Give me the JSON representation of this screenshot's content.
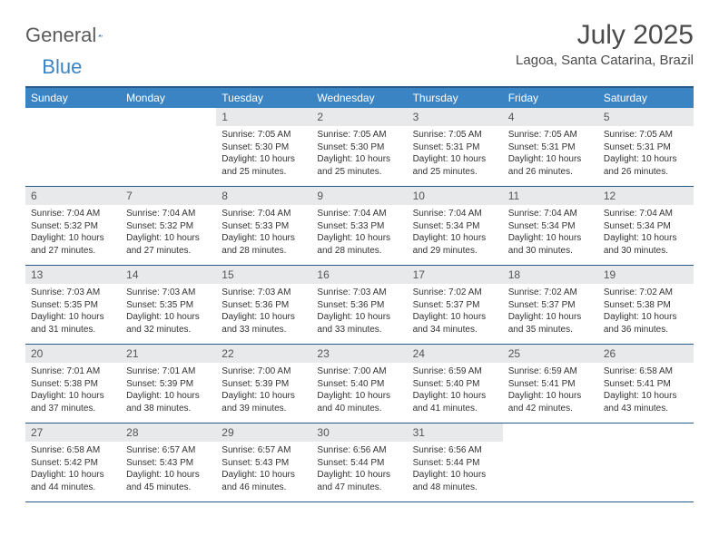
{
  "logo": {
    "text1": "General",
    "text2": "Blue"
  },
  "title": "July 2025",
  "location": "Lagoa, Santa Catarina, Brazil",
  "colors": {
    "header_bg": "#3b84c4",
    "row_border": "#2a5a8a",
    "daynum_bg": "#e8e9ea",
    "text": "#4a4a4a"
  },
  "weekdays": [
    "Sunday",
    "Monday",
    "Tuesday",
    "Wednesday",
    "Thursday",
    "Friday",
    "Saturday"
  ],
  "weeks": [
    [
      {
        "n": "",
        "sr": "",
        "ss": "",
        "dl": ""
      },
      {
        "n": "",
        "sr": "",
        "ss": "",
        "dl": ""
      },
      {
        "n": "1",
        "sr": "Sunrise: 7:05 AM",
        "ss": "Sunset: 5:30 PM",
        "dl": "Daylight: 10 hours and 25 minutes."
      },
      {
        "n": "2",
        "sr": "Sunrise: 7:05 AM",
        "ss": "Sunset: 5:30 PM",
        "dl": "Daylight: 10 hours and 25 minutes."
      },
      {
        "n": "3",
        "sr": "Sunrise: 7:05 AM",
        "ss": "Sunset: 5:31 PM",
        "dl": "Daylight: 10 hours and 25 minutes."
      },
      {
        "n": "4",
        "sr": "Sunrise: 7:05 AM",
        "ss": "Sunset: 5:31 PM",
        "dl": "Daylight: 10 hours and 26 minutes."
      },
      {
        "n": "5",
        "sr": "Sunrise: 7:05 AM",
        "ss": "Sunset: 5:31 PM",
        "dl": "Daylight: 10 hours and 26 minutes."
      }
    ],
    [
      {
        "n": "6",
        "sr": "Sunrise: 7:04 AM",
        "ss": "Sunset: 5:32 PM",
        "dl": "Daylight: 10 hours and 27 minutes."
      },
      {
        "n": "7",
        "sr": "Sunrise: 7:04 AM",
        "ss": "Sunset: 5:32 PM",
        "dl": "Daylight: 10 hours and 27 minutes."
      },
      {
        "n": "8",
        "sr": "Sunrise: 7:04 AM",
        "ss": "Sunset: 5:33 PM",
        "dl": "Daylight: 10 hours and 28 minutes."
      },
      {
        "n": "9",
        "sr": "Sunrise: 7:04 AM",
        "ss": "Sunset: 5:33 PM",
        "dl": "Daylight: 10 hours and 28 minutes."
      },
      {
        "n": "10",
        "sr": "Sunrise: 7:04 AM",
        "ss": "Sunset: 5:34 PM",
        "dl": "Daylight: 10 hours and 29 minutes."
      },
      {
        "n": "11",
        "sr": "Sunrise: 7:04 AM",
        "ss": "Sunset: 5:34 PM",
        "dl": "Daylight: 10 hours and 30 minutes."
      },
      {
        "n": "12",
        "sr": "Sunrise: 7:04 AM",
        "ss": "Sunset: 5:34 PM",
        "dl": "Daylight: 10 hours and 30 minutes."
      }
    ],
    [
      {
        "n": "13",
        "sr": "Sunrise: 7:03 AM",
        "ss": "Sunset: 5:35 PM",
        "dl": "Daylight: 10 hours and 31 minutes."
      },
      {
        "n": "14",
        "sr": "Sunrise: 7:03 AM",
        "ss": "Sunset: 5:35 PM",
        "dl": "Daylight: 10 hours and 32 minutes."
      },
      {
        "n": "15",
        "sr": "Sunrise: 7:03 AM",
        "ss": "Sunset: 5:36 PM",
        "dl": "Daylight: 10 hours and 33 minutes."
      },
      {
        "n": "16",
        "sr": "Sunrise: 7:03 AM",
        "ss": "Sunset: 5:36 PM",
        "dl": "Daylight: 10 hours and 33 minutes."
      },
      {
        "n": "17",
        "sr": "Sunrise: 7:02 AM",
        "ss": "Sunset: 5:37 PM",
        "dl": "Daylight: 10 hours and 34 minutes."
      },
      {
        "n": "18",
        "sr": "Sunrise: 7:02 AM",
        "ss": "Sunset: 5:37 PM",
        "dl": "Daylight: 10 hours and 35 minutes."
      },
      {
        "n": "19",
        "sr": "Sunrise: 7:02 AM",
        "ss": "Sunset: 5:38 PM",
        "dl": "Daylight: 10 hours and 36 minutes."
      }
    ],
    [
      {
        "n": "20",
        "sr": "Sunrise: 7:01 AM",
        "ss": "Sunset: 5:38 PM",
        "dl": "Daylight: 10 hours and 37 minutes."
      },
      {
        "n": "21",
        "sr": "Sunrise: 7:01 AM",
        "ss": "Sunset: 5:39 PM",
        "dl": "Daylight: 10 hours and 38 minutes."
      },
      {
        "n": "22",
        "sr": "Sunrise: 7:00 AM",
        "ss": "Sunset: 5:39 PM",
        "dl": "Daylight: 10 hours and 39 minutes."
      },
      {
        "n": "23",
        "sr": "Sunrise: 7:00 AM",
        "ss": "Sunset: 5:40 PM",
        "dl": "Daylight: 10 hours and 40 minutes."
      },
      {
        "n": "24",
        "sr": "Sunrise: 6:59 AM",
        "ss": "Sunset: 5:40 PM",
        "dl": "Daylight: 10 hours and 41 minutes."
      },
      {
        "n": "25",
        "sr": "Sunrise: 6:59 AM",
        "ss": "Sunset: 5:41 PM",
        "dl": "Daylight: 10 hours and 42 minutes."
      },
      {
        "n": "26",
        "sr": "Sunrise: 6:58 AM",
        "ss": "Sunset: 5:41 PM",
        "dl": "Daylight: 10 hours and 43 minutes."
      }
    ],
    [
      {
        "n": "27",
        "sr": "Sunrise: 6:58 AM",
        "ss": "Sunset: 5:42 PM",
        "dl": "Daylight: 10 hours and 44 minutes."
      },
      {
        "n": "28",
        "sr": "Sunrise: 6:57 AM",
        "ss": "Sunset: 5:43 PM",
        "dl": "Daylight: 10 hours and 45 minutes."
      },
      {
        "n": "29",
        "sr": "Sunrise: 6:57 AM",
        "ss": "Sunset: 5:43 PM",
        "dl": "Daylight: 10 hours and 46 minutes."
      },
      {
        "n": "30",
        "sr": "Sunrise: 6:56 AM",
        "ss": "Sunset: 5:44 PM",
        "dl": "Daylight: 10 hours and 47 minutes."
      },
      {
        "n": "31",
        "sr": "Sunrise: 6:56 AM",
        "ss": "Sunset: 5:44 PM",
        "dl": "Daylight: 10 hours and 48 minutes."
      },
      {
        "n": "",
        "sr": "",
        "ss": "",
        "dl": ""
      },
      {
        "n": "",
        "sr": "",
        "ss": "",
        "dl": ""
      }
    ]
  ]
}
